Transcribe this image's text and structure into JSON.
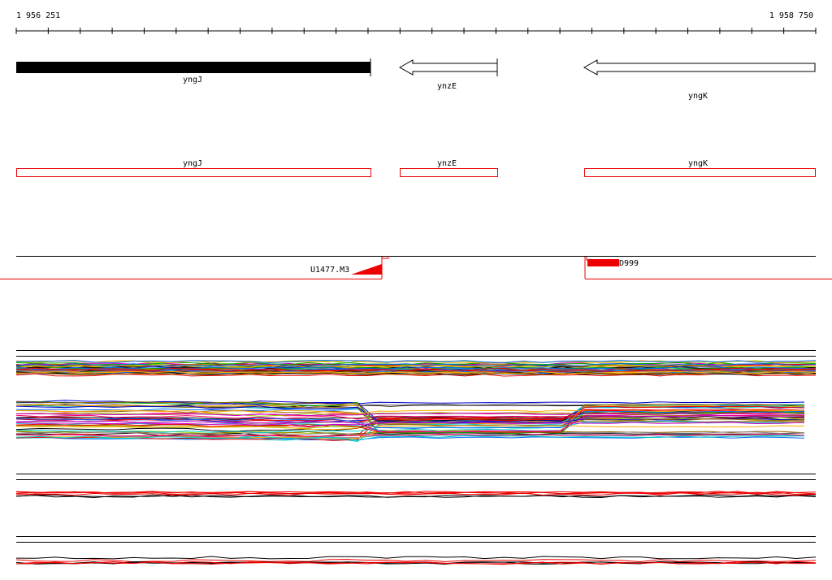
{
  "ruler": {
    "start": "1 956 251",
    "end": "1 958 750"
  },
  "genes": [
    {
      "label": "yngJ"
    },
    {
      "label": "ynzE"
    },
    {
      "label": "yngK"
    }
  ],
  "annotations": [
    {
      "label": "yngJ"
    },
    {
      "label": "ynzE"
    },
    {
      "label": "yngK"
    }
  ],
  "features": [
    {
      "label": "U1477.M3"
    },
    {
      "label": "D999"
    }
  ]
}
